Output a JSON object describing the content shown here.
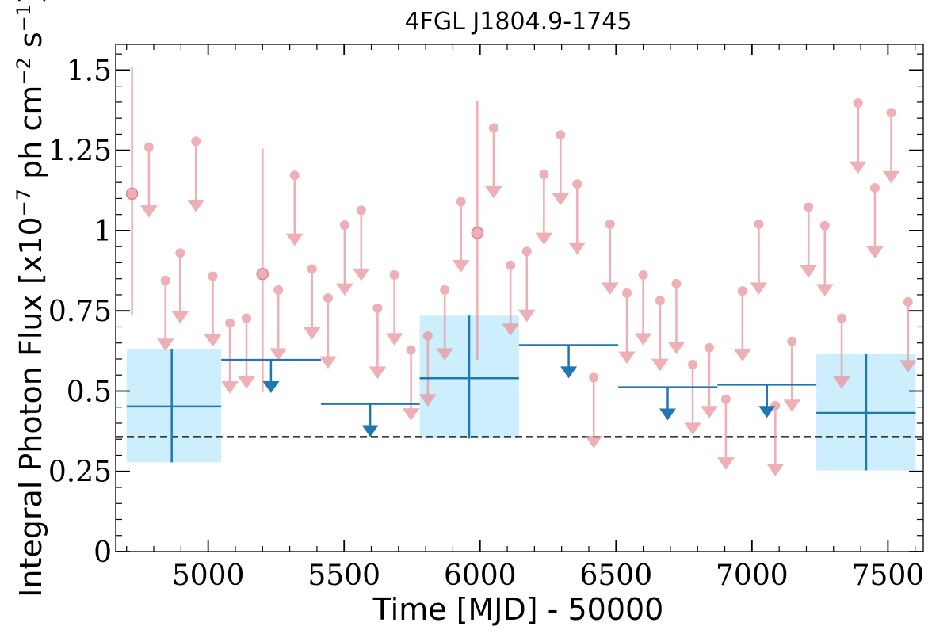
{
  "chart_data": {
    "type": "scatter",
    "title": "4FGL J1804.9-1745",
    "xlabel": "Time [MJD] - 50000",
    "ylabel": "Integral Photon Flux [x10",
    "ylabel_exp1": "−7",
    "ylabel_mid": " ph cm",
    "ylabel_exp2": "−2",
    "ylabel_s": " s",
    "ylabel_exp3": "−1",
    "ylabel_end": "]",
    "xlim": [
      4660,
      7630
    ],
    "ylim": [
      0,
      1.58
    ],
    "xticks": [
      5000,
      5500,
      6000,
      6500,
      7000,
      7500
    ],
    "xtick_labels": [
      "5000",
      "5500",
      "6000",
      "6500",
      "7000",
      "7500"
    ],
    "yticks": [
      0,
      0.25,
      0.5,
      0.75,
      1,
      1.25,
      1.5
    ],
    "ytick_labels": [
      "0",
      "0.25",
      "0.5",
      "0.75",
      "1",
      "1.25",
      "1.5"
    ],
    "grid": false,
    "mean_flux": 0.357,
    "colors": {
      "short_bin": "#e8939a",
      "long_bin": "#1f77b4",
      "long_bin_band": "#cdeefc",
      "mean_line": "#000000"
    },
    "long_bins": [
      {
        "x": 4866,
        "x_low": 4700,
        "x_high": 5048,
        "y": 0.452,
        "y_low": 0.278,
        "y_high": 0.632,
        "upper_limit": false
      },
      {
        "x": 5231,
        "x_low": 5048,
        "x_high": 5415,
        "y": 0.597,
        "upper_limit": true
      },
      {
        "x": 5596,
        "x_low": 5415,
        "x_high": 5778,
        "y": 0.46,
        "upper_limit": true
      },
      {
        "x": 5960,
        "x_low": 5778,
        "x_high": 6143,
        "y": 0.54,
        "y_low": 0.352,
        "y_high": 0.735,
        "upper_limit": false
      },
      {
        "x": 6326,
        "x_low": 6143,
        "x_high": 6508,
        "y": 0.643,
        "upper_limit": true
      },
      {
        "x": 6690,
        "x_low": 6508,
        "x_high": 6873,
        "y": 0.512,
        "upper_limit": true
      },
      {
        "x": 7055,
        "x_low": 6873,
        "x_high": 7237,
        "y": 0.52,
        "upper_limit": true
      },
      {
        "x": 7420,
        "x_low": 7237,
        "x_high": 7602,
        "y": 0.432,
        "y_low": 0.253,
        "y_high": 0.615,
        "upper_limit": false
      }
    ],
    "short_bins": [
      {
        "x": 4720,
        "y": 1.115,
        "y_low": 0.735,
        "y_high": 1.51,
        "upper_limit": false
      },
      {
        "x": 4782,
        "y": 1.26,
        "upper_limit": true
      },
      {
        "x": 4843,
        "y": 0.845,
        "upper_limit": true
      },
      {
        "x": 4897,
        "y": 0.93,
        "upper_limit": true
      },
      {
        "x": 4955,
        "y": 1.278,
        "upper_limit": true
      },
      {
        "x": 5017,
        "y": 0.858,
        "upper_limit": true
      },
      {
        "x": 5080,
        "y": 0.712,
        "upper_limit": true
      },
      {
        "x": 5141,
        "y": 0.727,
        "upper_limit": true
      },
      {
        "x": 5200,
        "y": 0.865,
        "y_low": 0.497,
        "y_high": 1.255,
        "upper_limit": false
      },
      {
        "x": 5258,
        "y": 0.815,
        "upper_limit": true
      },
      {
        "x": 5318,
        "y": 1.172,
        "upper_limit": true
      },
      {
        "x": 5382,
        "y": 0.88,
        "upper_limit": true
      },
      {
        "x": 5441,
        "y": 0.79,
        "upper_limit": true
      },
      {
        "x": 5502,
        "y": 1.017,
        "upper_limit": true
      },
      {
        "x": 5563,
        "y": 1.063,
        "upper_limit": true
      },
      {
        "x": 5623,
        "y": 0.758,
        "upper_limit": true
      },
      {
        "x": 5685,
        "y": 0.862,
        "upper_limit": true
      },
      {
        "x": 5746,
        "y": 0.628,
        "upper_limit": true
      },
      {
        "x": 5808,
        "y": 0.672,
        "upper_limit": true
      },
      {
        "x": 5870,
        "y": 0.815,
        "upper_limit": true
      },
      {
        "x": 5930,
        "y": 1.09,
        "upper_limit": true
      },
      {
        "x": 5990,
        "y": 0.993,
        "y_low": 0.597,
        "y_high": 1.405,
        "upper_limit": false
      },
      {
        "x": 6050,
        "y": 1.32,
        "upper_limit": true
      },
      {
        "x": 6112,
        "y": 0.892,
        "upper_limit": true
      },
      {
        "x": 6172,
        "y": 0.935,
        "upper_limit": true
      },
      {
        "x": 6235,
        "y": 1.175,
        "upper_limit": true
      },
      {
        "x": 6296,
        "y": 1.298,
        "upper_limit": true
      },
      {
        "x": 6357,
        "y": 1.145,
        "upper_limit": true
      },
      {
        "x": 6478,
        "y": 1.02,
        "upper_limit": true
      },
      {
        "x": 6418,
        "y": 0.542,
        "upper_limit": true
      },
      {
        "x": 6540,
        "y": 0.805,
        "upper_limit": true
      },
      {
        "x": 6600,
        "y": 0.862,
        "upper_limit": true
      },
      {
        "x": 6662,
        "y": 0.782,
        "upper_limit": true
      },
      {
        "x": 6722,
        "y": 0.835,
        "upper_limit": true
      },
      {
        "x": 6782,
        "y": 0.583,
        "upper_limit": true
      },
      {
        "x": 6843,
        "y": 0.635,
        "upper_limit": true
      },
      {
        "x": 6904,
        "y": 0.475,
        "upper_limit": true
      },
      {
        "x": 6965,
        "y": 0.812,
        "upper_limit": true
      },
      {
        "x": 7025,
        "y": 1.02,
        "upper_limit": true
      },
      {
        "x": 7086,
        "y": 0.455,
        "upper_limit": true
      },
      {
        "x": 7147,
        "y": 0.655,
        "upper_limit": true
      },
      {
        "x": 7208,
        "y": 1.073,
        "upper_limit": true
      },
      {
        "x": 7268,
        "y": 1.015,
        "upper_limit": true
      },
      {
        "x": 7330,
        "y": 0.727,
        "upper_limit": true
      },
      {
        "x": 7390,
        "y": 1.397,
        "upper_limit": true
      },
      {
        "x": 7452,
        "y": 1.133,
        "upper_limit": true
      },
      {
        "x": 7512,
        "y": 1.367,
        "upper_limit": true
      },
      {
        "x": 7574,
        "y": 0.778,
        "upper_limit": true
      }
    ]
  }
}
